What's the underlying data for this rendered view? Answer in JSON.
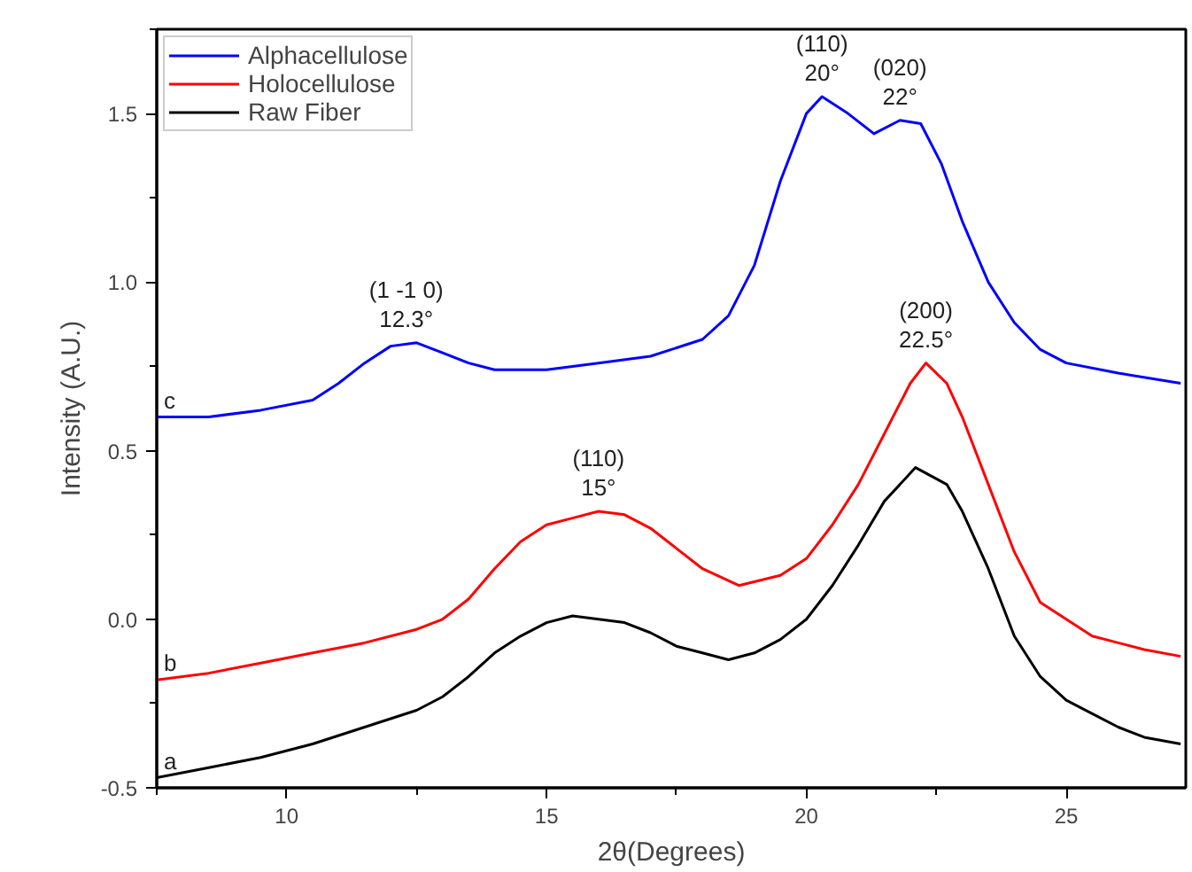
{
  "chart_data": {
    "type": "line",
    "xlabel": "2θ(Degrees)",
    "ylabel": "Intensity (A.U.)",
    "xlim": [
      7.5,
      27.3
    ],
    "ylim": [
      -0.5,
      1.75
    ],
    "xticks": [
      10,
      15,
      20,
      25
    ],
    "yticks": [
      {
        "value": -0.5,
        "label": "-0.5"
      },
      {
        "value": 0,
        "label": "0.0"
      },
      {
        "value": 0.5,
        "label": "0.5"
      },
      {
        "value": 1,
        "label": "1.0"
      },
      {
        "value": 1.5,
        "label": "1.5"
      }
    ],
    "grid": false,
    "legend": "top left",
    "marker": "none",
    "line_style": "solid",
    "series": [
      {
        "name": "Alphacellulose",
        "color": "#0000ff",
        "x": [
          7.5,
          8.5,
          9.5,
          10.5,
          11,
          11.5,
          12,
          12.5,
          13,
          13.5,
          14,
          15,
          16,
          17,
          18,
          18.5,
          19,
          19.5,
          20,
          20.3,
          20.8,
          21.3,
          21.8,
          22.2,
          22.6,
          23,
          23.5,
          24,
          24.5,
          25,
          26,
          27.2
        ],
        "values": [
          0.6,
          0.6,
          0.62,
          0.65,
          0.7,
          0.76,
          0.81,
          0.82,
          0.79,
          0.76,
          0.74,
          0.74,
          0.76,
          0.78,
          0.83,
          0.9,
          1.05,
          1.3,
          1.5,
          1.55,
          1.5,
          1.44,
          1.48,
          1.47,
          1.35,
          1.18,
          1.0,
          0.88,
          0.8,
          0.76,
          0.73,
          0.7
        ]
      },
      {
        "name": "Holocellulose",
        "color": "#ff0000",
        "x": [
          7.5,
          8.5,
          9.5,
          10.5,
          11.5,
          12.5,
          13,
          13.5,
          14,
          14.5,
          15,
          15.5,
          16,
          16.5,
          17,
          17.5,
          18,
          18.7,
          19.5,
          20,
          20.5,
          21,
          21.5,
          22,
          22.3,
          22.7,
          23,
          23.5,
          24,
          24.5,
          25,
          25.5,
          26,
          26.5,
          27.2
        ],
        "values": [
          -0.18,
          -0.16,
          -0.13,
          -0.1,
          -0.07,
          -0.03,
          0.0,
          0.06,
          0.15,
          0.23,
          0.28,
          0.3,
          0.32,
          0.31,
          0.27,
          0.21,
          0.15,
          0.1,
          0.13,
          0.18,
          0.28,
          0.4,
          0.55,
          0.7,
          0.76,
          0.7,
          0.6,
          0.4,
          0.2,
          0.05,
          0.0,
          -0.05,
          -0.07,
          -0.09,
          -0.11
        ]
      },
      {
        "name": "Raw Fiber",
        "color": "#000000",
        "x": [
          7.5,
          8.5,
          9.5,
          10.5,
          11.5,
          12.5,
          13,
          13.5,
          14,
          14.5,
          15,
          15.5,
          16,
          16.5,
          17,
          17.5,
          18,
          18.5,
          19,
          19.5,
          20,
          20.5,
          21,
          21.5,
          22.1,
          22.7,
          23,
          23.5,
          24,
          24.5,
          25,
          25.5,
          26,
          26.5,
          27.2
        ],
        "values": [
          -0.47,
          -0.44,
          -0.41,
          -0.37,
          -0.32,
          -0.27,
          -0.23,
          -0.17,
          -0.1,
          -0.05,
          -0.01,
          0.01,
          0.0,
          -0.01,
          -0.04,
          -0.08,
          -0.1,
          -0.12,
          -0.1,
          -0.06,
          0.0,
          0.1,
          0.22,
          0.35,
          0.45,
          0.4,
          0.32,
          0.15,
          -0.05,
          -0.17,
          -0.24,
          -0.28,
          -0.32,
          -0.35,
          -0.37
        ]
      }
    ],
    "annotations": [
      {
        "text": "(1 -1 0)\n12.3°",
        "x": 12.3,
        "y": 0.82
      },
      {
        "text": "(110)\n20°",
        "x": 20.3,
        "y": 1.55
      },
      {
        "text": "(020)\n22°",
        "x": 21.8,
        "y": 1.48
      },
      {
        "text": "(200)\n22.5°",
        "x": 22.3,
        "y": 0.76
      },
      {
        "text": "(110)\n15°",
        "x": 16,
        "y": 0.32
      },
      {
        "text": "c",
        "x": 7.5,
        "y": 0.6
      },
      {
        "text": "b",
        "x": 7.5,
        "y": -0.18
      },
      {
        "text": "a",
        "x": 7.5,
        "y": -0.47
      }
    ]
  }
}
